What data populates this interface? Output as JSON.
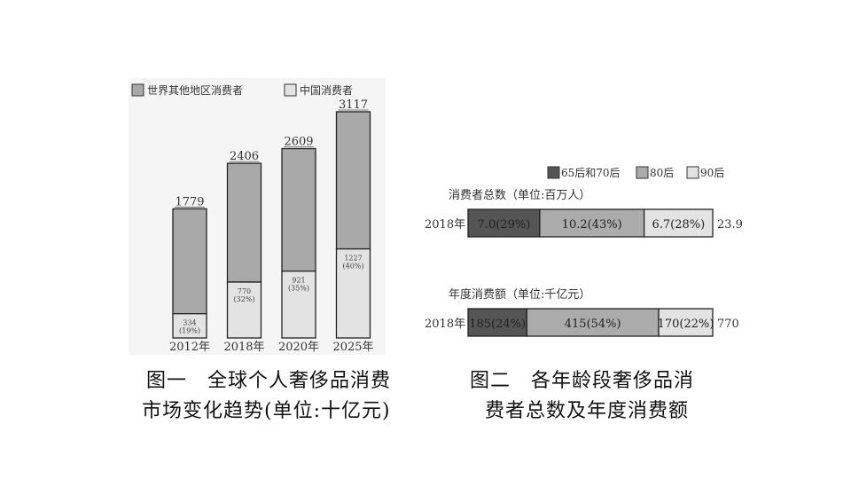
{
  "chart_data": [
    {
      "type": "bar",
      "stacked": true,
      "legend": [
        "世界其他地区消费者",
        "中国消费者"
      ],
      "legend_position": "top-left",
      "categories": [
        "2012年",
        "2018年",
        "2020年",
        "2025年"
      ],
      "totals": [
        1779,
        2406,
        2609,
        3117
      ],
      "series": [
        {
          "name": "中国消费者",
          "values": [
            334,
            770,
            921,
            1227
          ],
          "labels": [
            "(19%)",
            "(32%)",
            "(35%)",
            "(40%)"
          ],
          "color": "#e3e3e3"
        },
        {
          "name": "世界其他地区消费者",
          "values": [
            1445,
            1636,
            1688,
            1890
          ],
          "color": "#a9a9a9"
        }
      ],
      "ylim": [
        0,
        3300
      ],
      "caption": [
        "图一　全球个人奢侈品消费",
        "市场变化趋势(单位:十亿元)"
      ]
    },
    {
      "type": "bar",
      "orientation": "horizontal",
      "stacked": true,
      "legend": [
        "65后和70后",
        "80后",
        "90后"
      ],
      "legend_colors": [
        "#555555",
        "#ababab",
        "#e3e3e3"
      ],
      "legend_position": "top-right",
      "panels": [
        {
          "title": "消费者总数（单位:百万人）",
          "category": "2018年",
          "values": [
            7.0,
            10.2,
            6.7
          ],
          "labels": [
            "7.0(29%)",
            "10.2(43%)",
            "6.7(28%)"
          ],
          "total_label": "23.9"
        },
        {
          "title": "年度消费额（单位:千亿元）",
          "category": "2018年",
          "values": [
            185,
            415,
            170
          ],
          "labels": [
            "185(24%)",
            "415(54%)",
            "170(22%)"
          ],
          "total_label": "770"
        }
      ],
      "caption": [
        "图二　各年龄段奢侈品消",
        "费者总数及年度消费额"
      ]
    }
  ]
}
